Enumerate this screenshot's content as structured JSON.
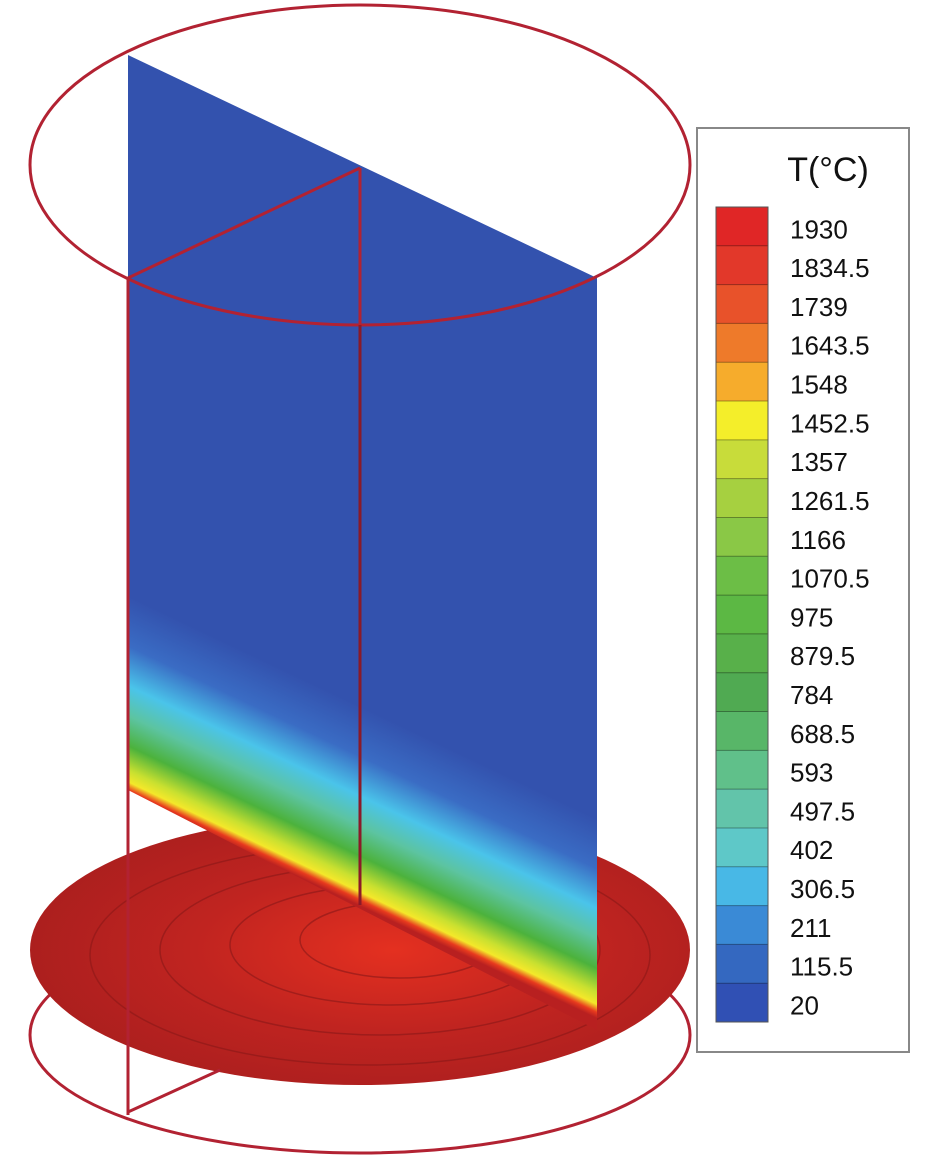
{
  "legend": {
    "title": "T(°C)",
    "levels": [
      1930,
      1834.5,
      1739,
      1643.5,
      1548,
      1452.5,
      1357,
      1261.5,
      1166,
      1070.5,
      975,
      879.5,
      784,
      688.5,
      593,
      497.5,
      402,
      306.5,
      211,
      115.5,
      20
    ],
    "colors": [
      "#e02626",
      "#e2382a",
      "#e8522a",
      "#ee7a2a",
      "#f6ac2c",
      "#f4ee2a",
      "#c8dc3a",
      "#a6d040",
      "#8ac846",
      "#6cbe46",
      "#5cb844",
      "#58b04a",
      "#50aa52",
      "#58b668",
      "#60c08a",
      "#62c4aa",
      "#5ec8c8",
      "#48b8e6",
      "#3a8ad6",
      "#3468c0",
      "#3050b4"
    ]
  }
}
